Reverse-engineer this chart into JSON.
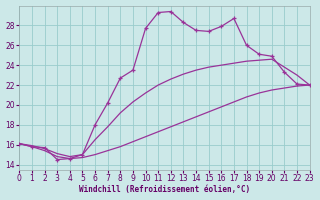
{
  "xlabel": "Windchill (Refroidissement éolien,°C)",
  "background_color": "#cce8e8",
  "line_color": "#993399",
  "xlim": [
    0,
    23
  ],
  "ylim": [
    13.5,
    30.0
  ],
  "xticks": [
    0,
    1,
    2,
    3,
    4,
    5,
    6,
    7,
    8,
    9,
    10,
    11,
    12,
    13,
    14,
    15,
    16,
    17,
    18,
    19,
    20,
    21,
    22,
    23
  ],
  "yticks": [
    14,
    16,
    18,
    20,
    22,
    24,
    26,
    28
  ],
  "grid_color": "#99cccc",
  "series1_x": [
    0,
    1,
    2,
    3,
    4,
    5,
    6,
    7,
    8,
    9,
    10,
    11,
    12,
    13,
    14,
    15,
    16,
    17,
    18,
    19,
    20,
    21,
    22,
    23
  ],
  "series1_y": [
    16.1,
    15.8,
    15.7,
    14.5,
    14.6,
    15.0,
    18.0,
    20.2,
    22.7,
    23.5,
    27.7,
    29.3,
    29.4,
    28.3,
    27.5,
    27.4,
    27.9,
    28.7,
    26.0,
    25.1,
    24.9,
    23.3,
    22.1,
    22.0
  ],
  "series2_x": [
    0,
    1,
    2,
    3,
    4,
    5,
    6,
    7,
    8,
    9,
    10,
    11,
    12,
    13,
    14,
    15,
    16,
    17,
    18,
    19,
    20,
    21,
    22,
    23
  ],
  "series2_y": [
    16.1,
    15.8,
    15.4,
    14.8,
    14.6,
    14.7,
    15.0,
    15.4,
    15.8,
    16.3,
    16.8,
    17.3,
    17.8,
    18.3,
    18.8,
    19.3,
    19.8,
    20.3,
    20.8,
    21.2,
    21.5,
    21.7,
    21.9,
    22.0
  ],
  "series3_x": [
    0,
    1,
    2,
    3,
    4,
    5,
    6,
    7,
    8,
    9,
    10,
    11,
    12,
    13,
    14,
    15,
    16,
    17,
    18,
    19,
    20,
    21,
    22,
    23
  ],
  "series3_y": [
    16.1,
    15.9,
    15.6,
    15.1,
    14.8,
    15.0,
    16.5,
    17.8,
    19.2,
    20.3,
    21.2,
    22.0,
    22.6,
    23.1,
    23.5,
    23.8,
    24.0,
    24.2,
    24.4,
    24.5,
    24.6,
    23.8,
    23.0,
    22.0
  ]
}
